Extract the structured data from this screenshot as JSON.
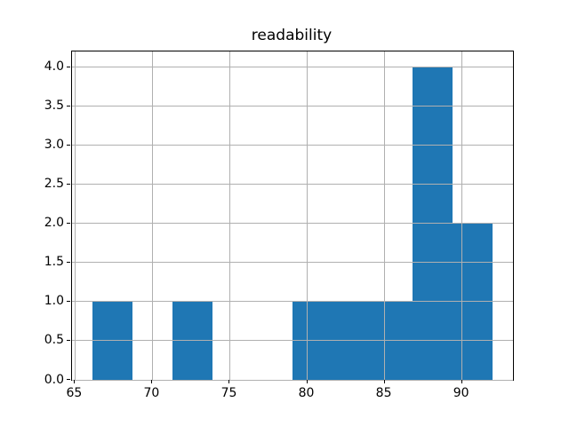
{
  "chart_data": {
    "type": "bar",
    "subtype": "histogram",
    "title": "readability",
    "xlabel": "",
    "ylabel": "",
    "bin_edges": [
      66.1,
      68.69,
      71.28,
      73.87,
      76.46,
      79.05,
      81.64,
      84.23,
      86.82,
      89.41,
      92.0
    ],
    "counts": [
      1,
      0,
      1,
      0,
      0,
      1,
      1,
      1,
      4,
      2
    ],
    "xticks": {
      "values": [
        65,
        70,
        75,
        80,
        85,
        90
      ],
      "labels": [
        "65",
        "70",
        "75",
        "80",
        "85",
        "90"
      ]
    },
    "yticks": {
      "values": [
        0,
        0.5,
        1,
        1.5,
        2,
        2.5,
        3,
        3.5,
        4
      ],
      "labels": [
        "0.0",
        "0.5",
        "1.0",
        "1.5",
        "2.0",
        "2.5",
        "3.0",
        "3.5",
        "4.0"
      ]
    },
    "xlim": [
      64.805,
      93.295
    ],
    "ylim": [
      0,
      4.2
    ],
    "grid": true,
    "legend_position": "none",
    "colors": {
      "bar": "#1f77b4",
      "grid": "#b0b0b0",
      "spine": "#000000",
      "text": "#000000",
      "background": "#ffffff"
    }
  }
}
